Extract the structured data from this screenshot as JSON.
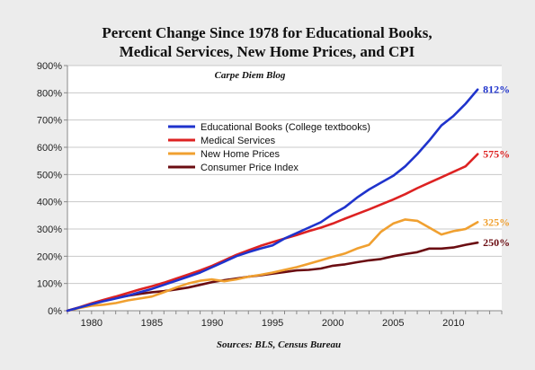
{
  "chart_data": {
    "type": "line",
    "title_line1": "Percent Change Since 1978 for Educational Books,",
    "title_line2": "Medical Services, New Home Prices, and CPI",
    "subtitle": "Carpe Diem Blog",
    "source": "Sources: BLS, Census Bureau",
    "ylim": [
      0,
      900
    ],
    "y_ticks": [
      0,
      100,
      200,
      300,
      400,
      500,
      600,
      700,
      800,
      900
    ],
    "y_tick_labels": [
      "0%",
      "100%",
      "200%",
      "300%",
      "400%",
      "500%",
      "600%",
      "700%",
      "800%",
      "900%"
    ],
    "xlim": [
      1978,
      2014
    ],
    "x_ticks": [
      1980,
      1985,
      1990,
      1995,
      2000,
      2005,
      2010
    ],
    "x_tick_labels": [
      "1980",
      "1985",
      "1990",
      "1995",
      "2000",
      "2005",
      "2010"
    ],
    "grid": "horizontal",
    "legend_position": "top-left",
    "series": [
      {
        "name": "Educational Books  (College textbooks)",
        "color": "#1f33cc",
        "end_label": "812%",
        "x": [
          1978,
          1979,
          1980,
          1981,
          1982,
          1983,
          1984,
          1985,
          1986,
          1987,
          1988,
          1989,
          1990,
          1991,
          1992,
          1993,
          1994,
          1995,
          1996,
          1997,
          1998,
          1999,
          2000,
          2001,
          2002,
          2003,
          2004,
          2005,
          2006,
          2007,
          2008,
          2009,
          2010,
          2011,
          2012
        ],
        "y": [
          0,
          12,
          24,
          35,
          45,
          55,
          68,
          80,
          95,
          110,
          125,
          140,
          160,
          180,
          200,
          215,
          228,
          240,
          265,
          285,
          305,
          325,
          355,
          380,
          415,
          445,
          470,
          495,
          530,
          575,
          625,
          680,
          715,
          760,
          812
        ]
      },
      {
        "name": "Medical Services",
        "color": "#dd2222",
        "end_label": "575%",
        "x": [
          1978,
          1979,
          1980,
          1981,
          1982,
          1983,
          1984,
          1985,
          1986,
          1987,
          1988,
          1989,
          1990,
          1991,
          1992,
          1993,
          1994,
          1995,
          1996,
          1997,
          1998,
          1999,
          2000,
          2001,
          2002,
          2003,
          2004,
          2005,
          2006,
          2007,
          2008,
          2009,
          2010,
          2011,
          2012
        ],
        "y": [
          0,
          13,
          27,
          40,
          52,
          65,
          78,
          90,
          103,
          118,
          133,
          148,
          165,
          185,
          205,
          222,
          238,
          252,
          265,
          278,
          292,
          305,
          320,
          338,
          355,
          372,
          390,
          408,
          428,
          450,
          470,
          490,
          510,
          530,
          575
        ]
      },
      {
        "name": "New Home Prices",
        "color": "#f0a030",
        "end_label": "325%",
        "x": [
          1978,
          1979,
          1980,
          1981,
          1982,
          1983,
          1984,
          1985,
          1986,
          1987,
          1988,
          1989,
          1990,
          1991,
          1992,
          1993,
          1994,
          1995,
          1996,
          1997,
          1998,
          1999,
          2000,
          2001,
          2002,
          2003,
          2004,
          2005,
          2006,
          2007,
          2008,
          2009,
          2010,
          2011,
          2012
        ],
        "y": [
          0,
          10,
          18,
          22,
          28,
          38,
          45,
          52,
          68,
          85,
          100,
          110,
          115,
          108,
          115,
          125,
          132,
          140,
          150,
          160,
          172,
          185,
          198,
          210,
          228,
          242,
          290,
          320,
          335,
          330,
          305,
          280,
          292,
          300,
          325
        ]
      },
      {
        "name": "Consumer Price Index",
        "color": "#6b0d12",
        "end_label": "250%",
        "x": [
          1978,
          1979,
          1980,
          1981,
          1982,
          1983,
          1984,
          1985,
          1986,
          1987,
          1988,
          1989,
          1990,
          1991,
          1992,
          1993,
          1994,
          1995,
          1996,
          1997,
          1998,
          1999,
          2000,
          2001,
          2002,
          2003,
          2004,
          2005,
          2006,
          2007,
          2008,
          2009,
          2010,
          2011,
          2012
        ],
        "y": [
          0,
          12,
          25,
          38,
          48,
          55,
          62,
          68,
          72,
          78,
          85,
          95,
          105,
          112,
          118,
          125,
          130,
          136,
          142,
          148,
          150,
          155,
          165,
          170,
          178,
          185,
          190,
          200,
          208,
          215,
          228,
          228,
          232,
          242,
          250
        ]
      }
    ]
  }
}
